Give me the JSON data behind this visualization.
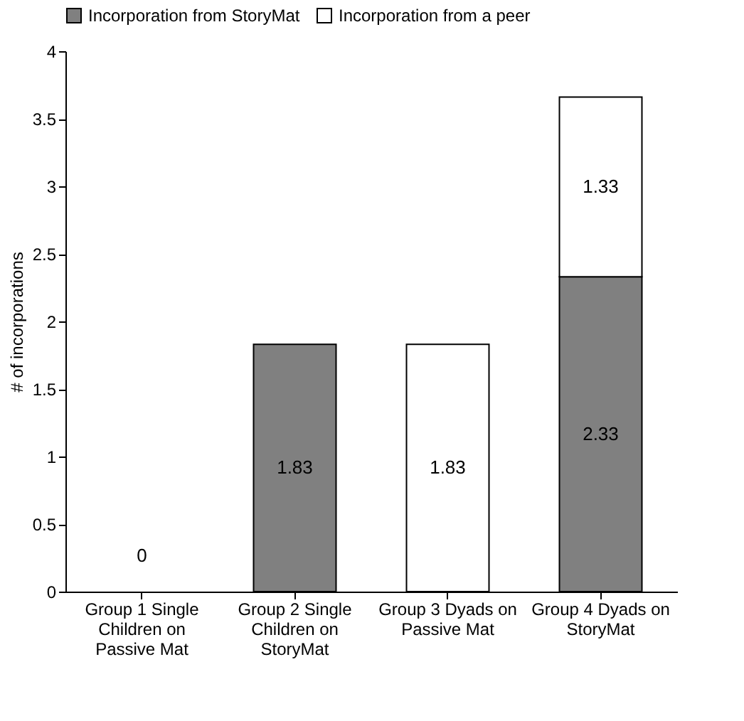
{
  "chart_data": {
    "type": "bar",
    "stacked": true,
    "ylabel": "# of incorporations",
    "categories": [
      "Group 1 Single Children on Passive Mat",
      "Group 2 Single Children on StoryMat",
      "Group 3 Dyads on Passive Mat",
      "Group 4 Dyads on StoryMat"
    ],
    "series": [
      {
        "name": "Incorporation from StoryMat",
        "color": "#808080",
        "values": [
          0,
          1.83,
          0,
          2.33
        ],
        "value_labels": [
          "0",
          "1.83",
          null,
          "2.33"
        ]
      },
      {
        "name": "Incorporation from a peer",
        "color": "#ffffff",
        "values": [
          0,
          0,
          1.83,
          1.33
        ],
        "value_labels": [
          null,
          null,
          "1.83",
          "1.33"
        ]
      }
    ],
    "ylim": [
      0,
      4
    ],
    "yticks": [
      0,
      0.5,
      1,
      1.5,
      2,
      2.5,
      3,
      3.5,
      4
    ],
    "grid": false,
    "legend": "top"
  }
}
